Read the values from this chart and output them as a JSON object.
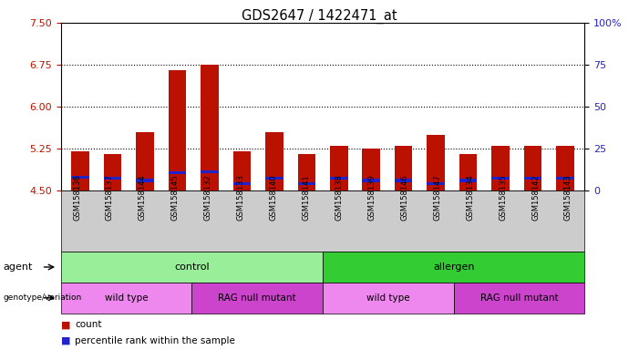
{
  "title": "GDS2647 / 1422471_at",
  "samples": [
    "GSM158136",
    "GSM158137",
    "GSM158144",
    "GSM158145",
    "GSM158132",
    "GSM158133",
    "GSM158140",
    "GSM158141",
    "GSM158138",
    "GSM158139",
    "GSM158146",
    "GSM158147",
    "GSM158134",
    "GSM158135",
    "GSM158142",
    "GSM158143"
  ],
  "red_values": [
    5.2,
    5.15,
    5.55,
    6.65,
    6.75,
    5.2,
    5.55,
    5.15,
    5.3,
    5.25,
    5.3,
    5.5,
    5.15,
    5.3,
    5.3,
    5.3
  ],
  "blue_values": [
    4.73,
    4.72,
    4.68,
    4.82,
    4.83,
    4.62,
    4.72,
    4.62,
    4.72,
    4.68,
    4.68,
    4.62,
    4.68,
    4.72,
    4.72,
    4.72
  ],
  "y_min": 4.5,
  "y_max": 7.5,
  "y_ticks_left": [
    4.5,
    5.25,
    6.0,
    6.75,
    7.5
  ],
  "y_ticks_right": [
    0,
    25,
    50,
    75,
    100
  ],
  "groups_agent": [
    {
      "label": "control",
      "start": 0,
      "end": 8,
      "color": "#99EE99"
    },
    {
      "label": "allergen",
      "start": 8,
      "end": 16,
      "color": "#33CC33"
    }
  ],
  "groups_genotype": [
    {
      "label": "wild type",
      "start": 0,
      "end": 4,
      "color": "#EE88EE"
    },
    {
      "label": "RAG null mutant",
      "start": 4,
      "end": 8,
      "color": "#CC44CC"
    },
    {
      "label": "wild type",
      "start": 8,
      "end": 12,
      "color": "#EE88EE"
    },
    {
      "label": "RAG null mutant",
      "start": 12,
      "end": 16,
      "color": "#CC44CC"
    }
  ],
  "legend_items": [
    {
      "label": "count",
      "color": "#BB1100"
    },
    {
      "label": "percentile rank within the sample",
      "color": "#2222CC"
    }
  ],
  "bar_width": 0.55,
  "bar_color": "#BB1100",
  "blue_color": "#2222CC",
  "left_axis_color": "#BB1100",
  "right_axis_color": "#2222CC",
  "xticklabel_bg": "#CCCCCC",
  "plot_bg": "#FFFFFF"
}
